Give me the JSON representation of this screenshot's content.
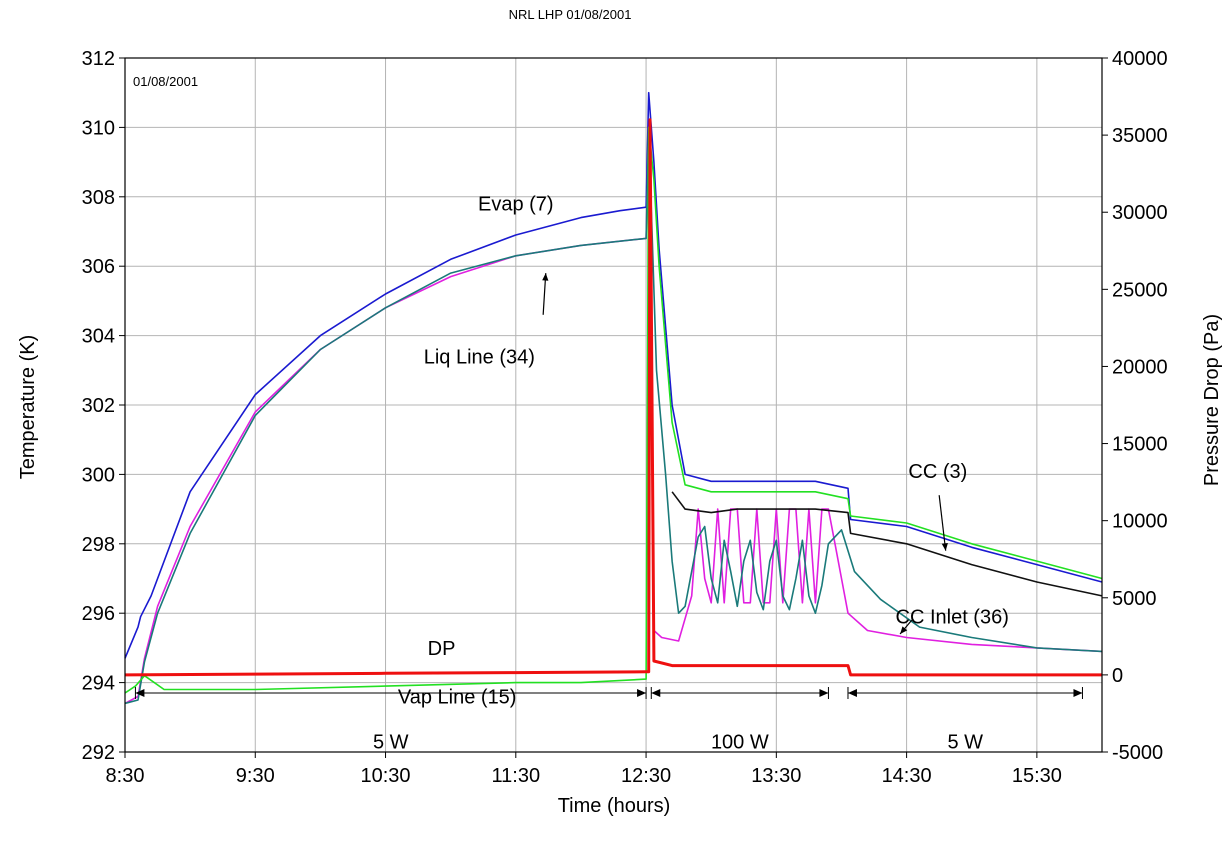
{
  "chart_data": {
    "type": "line",
    "title": "NRL LHP  01/08/2001",
    "inner_label": "01/08/2001",
    "xlabel": "Time (hours)",
    "ylabel_left": "Temperature (K)",
    "ylabel_right": "Pressure Drop (Pa)",
    "xlim_hours": [
      8.5,
      16.0
    ],
    "xticks": [
      8.5,
      9.5,
      10.5,
      11.5,
      12.5,
      13.5,
      14.5,
      15.5
    ],
    "xtick_labels": [
      "8:30",
      "9:30",
      "10:30",
      "11:30",
      "12:30",
      "13:30",
      "14:30",
      "15:30"
    ],
    "ylim_left": [
      292,
      312
    ],
    "yticks_left": [
      292,
      294,
      296,
      298,
      300,
      302,
      304,
      306,
      308,
      310,
      312
    ],
    "ylim_right": [
      -5000,
      40000
    ],
    "yticks_right": [
      -5000,
      0,
      5000,
      10000,
      15000,
      20000,
      25000,
      30000,
      35000,
      40000
    ],
    "grid": true,
    "series": [
      {
        "key": "evap",
        "color": "#1a1ad0",
        "axis": "left",
        "x": [
          8.5,
          8.6,
          8.62,
          8.7,
          9.0,
          9.5,
          10.0,
          10.5,
          11.0,
          11.5,
          12.0,
          12.3,
          12.5,
          12.52,
          12.56,
          12.6,
          12.7,
          12.8,
          13.0,
          13.2,
          13.5,
          13.8,
          14.05,
          14.07,
          14.5,
          15.0,
          15.5,
          16.0
        ],
        "y": [
          294.7,
          295.6,
          295.9,
          296.5,
          299.5,
          302.3,
          304.0,
          305.2,
          306.2,
          306.9,
          307.4,
          307.6,
          307.7,
          311.0,
          309.0,
          306.5,
          302.0,
          300.0,
          299.8,
          299.8,
          299.8,
          299.8,
          299.6,
          298.7,
          298.5,
          297.9,
          297.4,
          296.9
        ]
      },
      {
        "key": "liq_line",
        "color": "#e020e0",
        "axis": "left",
        "x": [
          8.5,
          8.6,
          8.65,
          8.75,
          9.0,
          9.5,
          10.0,
          10.5,
          11.0,
          11.5,
          12.0,
          12.5,
          12.52,
          12.56,
          12.62,
          12.75,
          12.85,
          12.9,
          12.95,
          13.0,
          13.05,
          13.1,
          13.15,
          13.2,
          13.25,
          13.3,
          13.35,
          13.4,
          13.45,
          13.5,
          13.55,
          13.6,
          13.65,
          13.7,
          13.75,
          13.8,
          13.85,
          13.9,
          13.95,
          14.0,
          14.05,
          14.2,
          14.5,
          15.0,
          15.5,
          16.0
        ],
        "y": [
          293.4,
          293.6,
          294.7,
          296.2,
          298.5,
          301.8,
          303.6,
          304.8,
          305.7,
          306.3,
          306.6,
          306.8,
          310.0,
          295.5,
          295.3,
          295.2,
          296.5,
          299.0,
          297.0,
          296.3,
          299.0,
          296.3,
          299.0,
          299.0,
          296.3,
          296.3,
          299.0,
          296.3,
          296.3,
          299.0,
          296.3,
          299.0,
          299.0,
          296.3,
          299.0,
          296.3,
          299.0,
          299.0,
          298.0,
          297.0,
          296.0,
          295.5,
          295.3,
          295.1,
          295.0,
          294.9
        ]
      },
      {
        "key": "teal",
        "color": "#1a7a7a",
        "axis": "left",
        "x": [
          8.5,
          8.6,
          8.65,
          8.75,
          9.0,
          9.5,
          10.0,
          10.5,
          11.0,
          11.5,
          12.0,
          12.5,
          12.52,
          12.58,
          12.65,
          12.7,
          12.75,
          12.8,
          12.9,
          12.95,
          13.0,
          13.05,
          13.1,
          13.15,
          13.2,
          13.25,
          13.3,
          13.35,
          13.4,
          13.45,
          13.5,
          13.55,
          13.6,
          13.65,
          13.7,
          13.75,
          13.8,
          13.85,
          13.9,
          14.0,
          14.1,
          14.3,
          14.6,
          15.0,
          15.5,
          16.0
        ],
        "y": [
          293.4,
          293.5,
          294.6,
          296.0,
          298.3,
          301.7,
          303.6,
          304.8,
          305.8,
          306.3,
          306.6,
          306.8,
          310.0,
          303.0,
          300.0,
          297.5,
          296.0,
          296.2,
          298.2,
          298.5,
          297.0,
          296.3,
          298.1,
          297.2,
          296.2,
          297.5,
          298.1,
          296.6,
          296.1,
          297.5,
          298.1,
          296.5,
          296.1,
          297.0,
          298.1,
          296.5,
          296.0,
          296.8,
          298.0,
          298.4,
          297.2,
          296.4,
          295.6,
          295.3,
          295.0,
          294.9
        ]
      },
      {
        "key": "green",
        "color": "#22e022",
        "axis": "left",
        "x": [
          8.5,
          8.58,
          8.65,
          8.8,
          9.5,
          10.5,
          11.5,
          12.0,
          12.5,
          12.52,
          12.56,
          12.6,
          12.7,
          12.8,
          13.0,
          13.2,
          13.5,
          13.8,
          14.05,
          14.07,
          14.5,
          15.0,
          15.5,
          16.0
        ],
        "y": [
          293.7,
          293.9,
          294.2,
          293.8,
          293.8,
          293.9,
          294.0,
          294.0,
          294.1,
          310.0,
          308.5,
          306.0,
          301.5,
          299.7,
          299.5,
          299.5,
          299.5,
          299.5,
          299.3,
          298.8,
          298.6,
          298.0,
          297.5,
          297.0
        ]
      },
      {
        "key": "black",
        "color": "#111111",
        "axis": "left",
        "x": [
          12.7,
          12.8,
          13.0,
          13.2,
          13.5,
          13.8,
          14.05,
          14.07,
          14.5,
          15.0,
          15.5,
          16.0
        ],
        "y": [
          299.5,
          299.0,
          298.9,
          299.0,
          299.0,
          299.0,
          298.9,
          298.3,
          298.0,
          297.4,
          296.9,
          296.5
        ]
      },
      {
        "key": "dp",
        "color": "#ee1010",
        "axis": "right",
        "x": [
          8.5,
          9.5,
          10.5,
          11.5,
          12.5,
          12.52,
          12.53,
          12.56,
          12.7,
          13.0,
          13.5,
          14.0,
          14.05,
          14.07,
          14.5,
          15.0,
          15.5,
          16.0
        ],
        "y": [
          0,
          50,
          100,
          150,
          200,
          200,
          36000,
          900,
          600,
          600,
          600,
          600,
          600,
          0,
          0,
          0,
          0,
          0
        ]
      }
    ],
    "annotations": [
      {
        "text": "Evap (7)",
        "x": 11.5,
        "y": 307.6
      },
      {
        "text": "Liq Line (34)",
        "x": 11.22,
        "y": 303.2
      },
      {
        "text": "DP",
        "x": 10.93,
        "y": 294.8
      },
      {
        "text": "Vap Line (15)",
        "x": 11.05,
        "y": 293.4
      },
      {
        "text": "CC (3)",
        "x": 14.74,
        "y": 299.9
      },
      {
        "text": "CC Inlet (36)",
        "x": 14.85,
        "y": 295.7
      }
    ],
    "power_segments": [
      {
        "label": "5 W",
        "x_from": 8.58,
        "x_to": 12.5
      },
      {
        "label": "100 W",
        "x_from": 12.54,
        "x_to": 13.9
      },
      {
        "label": "5 W",
        "x_from": 14.05,
        "x_to": 15.85
      }
    ]
  }
}
